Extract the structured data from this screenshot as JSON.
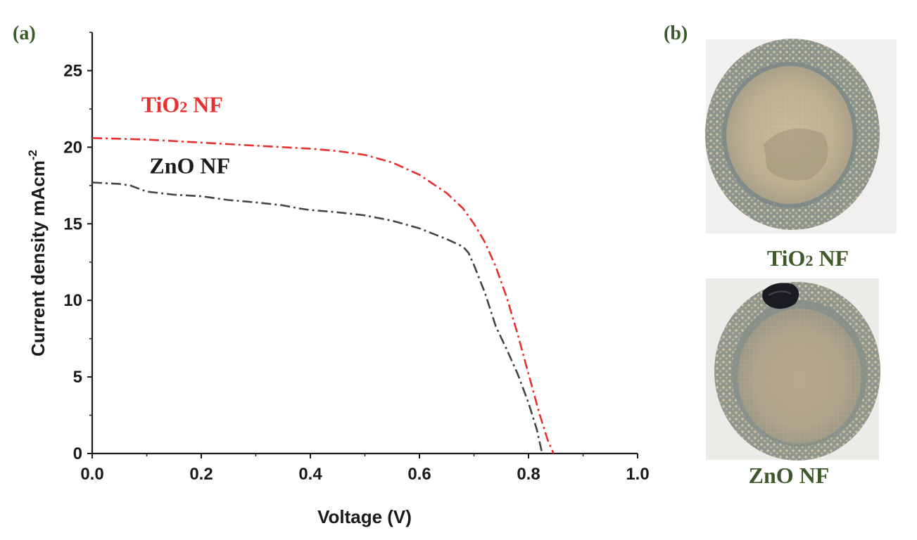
{
  "chart_data": {
    "type": "line",
    "title": "",
    "panel_label": "(a)",
    "xlabel": "Voltage (V)",
    "ylabel": "Current density  mAcm",
    "ylabel_superscript": "-2",
    "xlim": [
      0.0,
      1.0
    ],
    "ylim": [
      0,
      27.5
    ],
    "xticks": [
      0.0,
      0.2,
      0.4,
      0.6,
      0.8,
      1.0
    ],
    "xtick_labels": [
      "0.0",
      "0.2",
      "0.4",
      "0.6",
      "0.8",
      "1.0"
    ],
    "yticks": [
      0,
      5,
      10,
      15,
      20,
      25
    ],
    "ytick_labels": [
      "0",
      "5",
      "10",
      "15",
      "20",
      "25"
    ],
    "grid": false,
    "series": [
      {
        "name": "TiO2 NF",
        "label_main": "TiO",
        "label_sub": "2",
        "label_tail": " NF",
        "color": "#e8302e",
        "style": "dash-dot",
        "label_anchor": [
          0.09,
          22.3
        ],
        "x": [
          0.0,
          0.1,
          0.2,
          0.3,
          0.4,
          0.45,
          0.5,
          0.55,
          0.6,
          0.65,
          0.68,
          0.7,
          0.72,
          0.74,
          0.76,
          0.78,
          0.8,
          0.82,
          0.835,
          0.846
        ],
        "y": [
          20.6,
          20.5,
          20.3,
          20.1,
          19.9,
          19.75,
          19.5,
          19.0,
          18.2,
          17.0,
          16.0,
          15.0,
          13.8,
          12.2,
          10.2,
          7.8,
          5.2,
          2.6,
          0.9,
          0.0
        ]
      },
      {
        "name": "ZnO NF",
        "label_main": "ZnO NF",
        "label_sub": "",
        "label_tail": "",
        "color": "#444444",
        "style": "dash-dot",
        "label_anchor": [
          0.105,
          18.3
        ],
        "x": [
          0.0,
          0.05,
          0.07,
          0.1,
          0.15,
          0.2,
          0.25,
          0.3,
          0.35,
          0.38,
          0.4,
          0.45,
          0.5,
          0.55,
          0.6,
          0.65,
          0.68,
          0.69,
          0.7,
          0.72,
          0.74,
          0.76,
          0.78,
          0.8,
          0.815,
          0.825
        ],
        "y": [
          17.7,
          17.6,
          17.5,
          17.1,
          16.9,
          16.8,
          16.55,
          16.4,
          16.2,
          16.0,
          15.9,
          15.75,
          15.55,
          15.2,
          14.7,
          14.0,
          13.5,
          13.1,
          12.3,
          10.5,
          8.3,
          6.8,
          5.2,
          3.3,
          1.6,
          0.0
        ]
      }
    ]
  },
  "panel_b": {
    "label": "(b)",
    "photos": [
      {
        "caption_main": "TiO",
        "caption_sub": "2",
        "caption_tail": " NF",
        "subject": "TiO2 NF sample photo"
      },
      {
        "caption_main": "ZnO NF",
        "caption_sub": "",
        "caption_tail": "",
        "subject": "ZnO NF sample photo"
      }
    ]
  }
}
